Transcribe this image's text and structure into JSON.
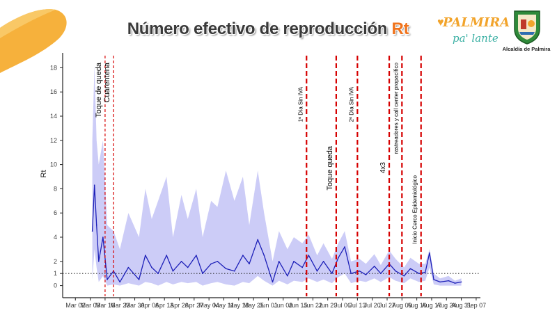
{
  "header": {
    "title_main": "Número efectivo de reproducción ",
    "title_accent": "Rt",
    "brand_name": "PALMIRA",
    "brand_slogan": "pa' lante",
    "seal_caption": "Alcaldía de Palmira"
  },
  "colors": {
    "band": "#c9c9f7",
    "line": "#1c1fb8",
    "ref_line": "#333333",
    "event_line": "#d60000",
    "title_accent": "#f0731c",
    "corner_deco": "#f6b13c"
  },
  "chart_data": {
    "type": "line",
    "title": "Número efectivo de reproducción Rt",
    "xlabel": "",
    "ylabel": "Rt",
    "ylim": [
      -1,
      19
    ],
    "xlim": [
      "2020-02-25",
      "2020-09-09"
    ],
    "yticks": [
      0,
      1,
      2,
      4,
      6,
      8,
      10,
      12,
      14,
      16,
      18
    ],
    "xtick_labels": [
      "Mar 02",
      "Mar 09",
      "Mar 16",
      "Mar 23",
      "Mar 30",
      "Apr 06",
      "Apr 13",
      "Apr 20",
      "Apr 27",
      "May 04",
      "May 11",
      "May 18",
      "May 25",
      "Jun 01",
      "Jun 08",
      "Jun 15",
      "Jun 22",
      "Jun 29",
      "Jul 06",
      "Jul 13",
      "Jul 20",
      "Jul 27",
      "Aug 03",
      "Aug 10",
      "Aug 17",
      "Aug 24",
      "Aug 31",
      "Sep 07"
    ],
    "xtick_dates": [
      "2020-03-02",
      "2020-03-09",
      "2020-03-16",
      "2020-03-23",
      "2020-03-30",
      "2020-04-06",
      "2020-04-13",
      "2020-04-20",
      "2020-04-27",
      "2020-05-04",
      "2020-05-11",
      "2020-05-18",
      "2020-05-25",
      "2020-06-01",
      "2020-06-08",
      "2020-06-15",
      "2020-06-22",
      "2020-06-29",
      "2020-07-06",
      "2020-07-13",
      "2020-07-20",
      "2020-07-27",
      "2020-08-03",
      "2020-08-10",
      "2020-08-17",
      "2020-08-24",
      "2020-08-31",
      "2020-09-07"
    ],
    "reference_line": {
      "y": 1,
      "style": "dotted"
    },
    "series": [
      {
        "kind": "line",
        "x": [
          "2020-03-10",
          "2020-03-11",
          "2020-03-12",
          "2020-03-13",
          "2020-03-15",
          "2020-03-17",
          "2020-03-20",
          "2020-03-23",
          "2020-03-27",
          "2020-04-01",
          "2020-04-04",
          "2020-04-07",
          "2020-04-10",
          "2020-04-14",
          "2020-04-17",
          "2020-04-21",
          "2020-04-24",
          "2020-04-28",
          "2020-05-01",
          "2020-05-05",
          "2020-05-08",
          "2020-05-12",
          "2020-05-16",
          "2020-05-20",
          "2020-05-23",
          "2020-05-27",
          "2020-05-30",
          "2020-06-03",
          "2020-06-06",
          "2020-06-10",
          "2020-06-13",
          "2020-06-17",
          "2020-06-20",
          "2020-06-24",
          "2020-06-27",
          "2020-07-01",
          "2020-07-04",
          "2020-07-07",
          "2020-07-10",
          "2020-07-14",
          "2020-07-17",
          "2020-07-21",
          "2020-07-24",
          "2020-07-28",
          "2020-07-31",
          "2020-08-04",
          "2020-08-07",
          "2020-08-11",
          "2020-08-14",
          "2020-08-16",
          "2020-08-18",
          "2020-08-21",
          "2020-08-25",
          "2020-08-28",
          "2020-08-31"
        ],
        "y": [
          4.5,
          8.3,
          5.0,
          2.0,
          4.0,
          0.5,
          1.2,
          0.3,
          1.5,
          0.5,
          2.5,
          1.5,
          1.0,
          2.5,
          1.2,
          2.0,
          1.5,
          2.5,
          1.0,
          1.8,
          2.0,
          1.4,
          1.2,
          2.5,
          1.8,
          3.8,
          2.5,
          0.3,
          2.0,
          0.8,
          2.0,
          1.5,
          2.5,
          1.2,
          2.0,
          1.0,
          2.3,
          3.2,
          1.0,
          1.2,
          0.9,
          1.6,
          1.0,
          1.8,
          1.2,
          0.8,
          1.4,
          1.0,
          1.1,
          2.7,
          0.5,
          0.3,
          0.4,
          0.2,
          0.3
        ]
      },
      {
        "kind": "band",
        "x": [
          "2020-03-10",
          "2020-03-11",
          "2020-03-12",
          "2020-03-13",
          "2020-03-15",
          "2020-03-17",
          "2020-03-20",
          "2020-03-23",
          "2020-03-27",
          "2020-04-01",
          "2020-04-04",
          "2020-04-07",
          "2020-04-10",
          "2020-04-14",
          "2020-04-17",
          "2020-04-21",
          "2020-04-24",
          "2020-04-28",
          "2020-05-01",
          "2020-05-05",
          "2020-05-08",
          "2020-05-12",
          "2020-05-16",
          "2020-05-20",
          "2020-05-23",
          "2020-05-27",
          "2020-05-30",
          "2020-06-03",
          "2020-06-06",
          "2020-06-10",
          "2020-06-13",
          "2020-06-17",
          "2020-06-20",
          "2020-06-24",
          "2020-06-27",
          "2020-07-01",
          "2020-07-04",
          "2020-07-07",
          "2020-07-10",
          "2020-07-14",
          "2020-07-17",
          "2020-07-21",
          "2020-07-24",
          "2020-07-28",
          "2020-07-31",
          "2020-08-04",
          "2020-08-07",
          "2020-08-11",
          "2020-08-14",
          "2020-08-16",
          "2020-08-18",
          "2020-08-21",
          "2020-08-25",
          "2020-08-28",
          "2020-08-31"
        ],
        "lower": [
          0.5,
          3.0,
          1.5,
          0.3,
          0.8,
          0.0,
          0.1,
          0.0,
          0.2,
          0.0,
          0.3,
          0.2,
          0.0,
          0.3,
          0.1,
          0.3,
          0.2,
          0.3,
          0.0,
          0.2,
          0.3,
          0.1,
          0.0,
          0.3,
          0.2,
          0.8,
          0.4,
          0.0,
          0.4,
          0.1,
          0.4,
          0.3,
          0.6,
          0.3,
          0.5,
          0.2,
          0.7,
          1.0,
          0.2,
          0.4,
          0.3,
          0.6,
          0.3,
          0.7,
          0.4,
          0.2,
          0.6,
          0.3,
          0.4,
          1.5,
          0.1,
          0.0,
          0.0,
          0.0,
          0.0
        ],
        "upper": [
          12.0,
          18.2,
          12.0,
          10.0,
          12.0,
          5.0,
          4.5,
          3.0,
          6.0,
          4.0,
          8.0,
          5.5,
          7.0,
          9.0,
          4.0,
          7.5,
          5.5,
          8.0,
          4.0,
          7.0,
          6.5,
          9.5,
          7.0,
          9.0,
          5.0,
          9.5,
          6.0,
          2.0,
          4.5,
          3.0,
          4.0,
          3.5,
          4.2,
          2.5,
          3.5,
          2.2,
          3.5,
          4.5,
          2.0,
          2.2,
          1.8,
          2.6,
          1.7,
          2.9,
          2.2,
          1.5,
          2.3,
          1.8,
          1.8,
          3.0,
          1.0,
          0.6,
          0.8,
          0.4,
          0.6
        ]
      }
    ],
    "events": [
      {
        "date": "2020-03-16",
        "label": "Toque de queda",
        "style": "thin"
      },
      {
        "date": "2020-03-20",
        "label": "Cuarentena",
        "style": "thin"
      },
      {
        "date": "2020-06-19",
        "label": "1º Día Sin IVA",
        "style": "bold"
      },
      {
        "date": "2020-07-03",
        "label": "Toque  queda",
        "style": "bold"
      },
      {
        "date": "2020-07-13",
        "label": "2º Día Sin IVA",
        "style": "bold"
      },
      {
        "date": "2020-07-28",
        "label": "4x3",
        "style": "bold"
      },
      {
        "date": "2020-08-03",
        "label": "rastreadores y call center propacífico",
        "style": "bold"
      },
      {
        "date": "2020-08-12",
        "label": "Inicio Cerco Epidemiológico",
        "style": "bold"
      }
    ]
  }
}
